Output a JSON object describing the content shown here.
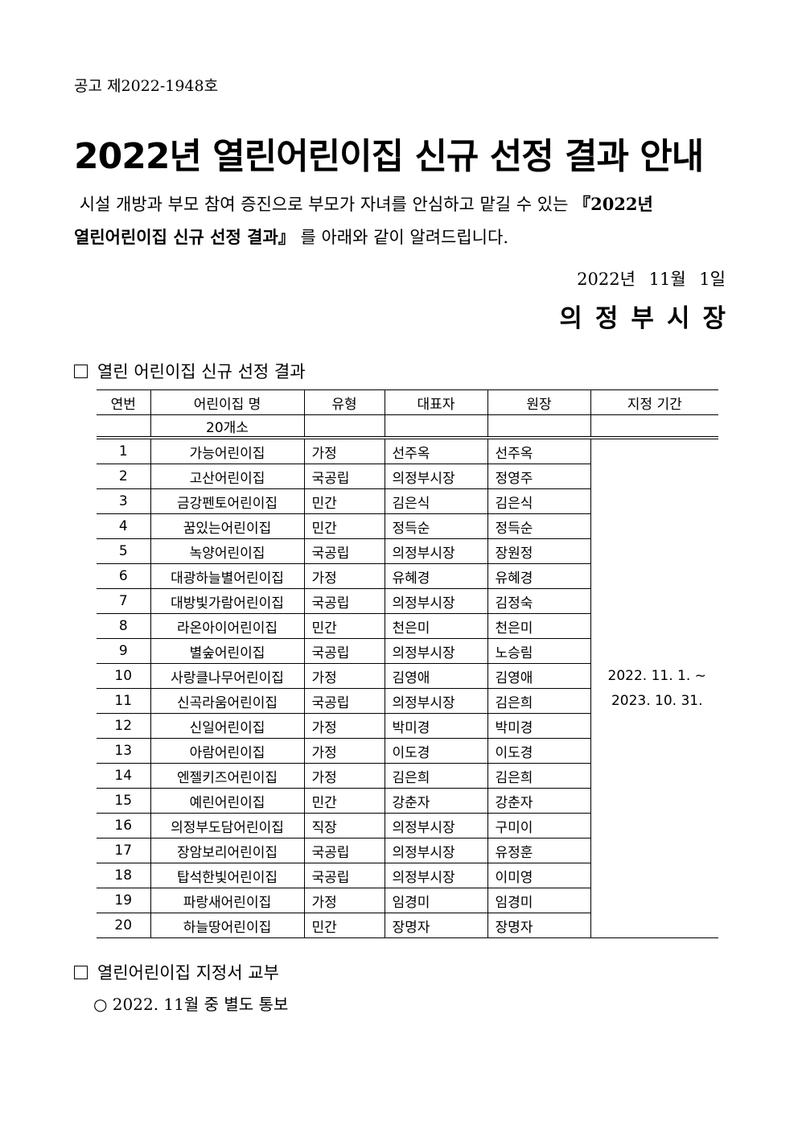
{
  "notice_number": "공고 제2022-1948호",
  "title": "2022년 열린어린이집 신규 선정 결과 안내",
  "intro": {
    "line1_plain": "시설 개방과 부모 참여 증진으로 부모가 자녀를 안심하고 맡길 수 있는 ",
    "line1_bold": "『2022년",
    "line2_bold": "열린어린이집 신규 선정 결과』",
    "line2_plain": " 를 아래와 같이 알려드립니다."
  },
  "date": "2022년 11월 1일",
  "signer": "의정부시장",
  "section1_title": "열린 어린이집 신규 선정 결과",
  "table": {
    "headers": [
      "연번",
      "어린이집 명",
      "유형",
      "대표자",
      "원장",
      "지정 기간"
    ],
    "subtotal": "20개소",
    "period_line1": "2022. 11. 1. ~",
    "period_line2": "2023. 10. 31.",
    "rows": [
      [
        "1",
        "가능어린이집",
        "가정",
        "선주옥",
        "선주옥"
      ],
      [
        "2",
        "고산어린이집",
        "국공립",
        "의정부시장",
        "정영주"
      ],
      [
        "3",
        "금강펜토어린이집",
        "민간",
        "김은식",
        "김은식"
      ],
      [
        "4",
        "꿈있는어린이집",
        "민간",
        "정득순",
        "정득순"
      ],
      [
        "5",
        "녹양어린이집",
        "국공립",
        "의정부시장",
        "장원정"
      ],
      [
        "6",
        "대광하늘별어린이집",
        "가정",
        "유혜경",
        "유혜경"
      ],
      [
        "7",
        "대방빛가람어린이집",
        "국공립",
        "의정부시장",
        "김정숙"
      ],
      [
        "8",
        "라온아이어린이집",
        "민간",
        "천은미",
        "천은미"
      ],
      [
        "9",
        "별숲어린이집",
        "국공립",
        "의정부시장",
        "노승림"
      ],
      [
        "10",
        "사랑클나무어린이집",
        "가정",
        "김영애",
        "김영애"
      ],
      [
        "11",
        "신곡라움어린이집",
        "국공립",
        "의정부시장",
        "김은희"
      ],
      [
        "12",
        "신일어린이집",
        "가정",
        "박미경",
        "박미경"
      ],
      [
        "13",
        "아람어린이집",
        "가정",
        "이도경",
        "이도경"
      ],
      [
        "14",
        "엔젤키즈어린이집",
        "가정",
        "김은희",
        "김은희"
      ],
      [
        "15",
        "예린어린이집",
        "민간",
        "강춘자",
        "강춘자"
      ],
      [
        "16",
        "의정부도담어린이집",
        "직장",
        "의정부시장",
        "구미이"
      ],
      [
        "17",
        "장암보리어린이집",
        "국공립",
        "의정부시장",
        "유정훈"
      ],
      [
        "18",
        "탑석한빛어린이집",
        "국공립",
        "의정부시장",
        "이미영"
      ],
      [
        "19",
        "파랑새어린이집",
        "가정",
        "임경미",
        "임경미"
      ],
      [
        "20",
        "하늘땅어린이집",
        "민간",
        "장명자",
        "장명자"
      ]
    ]
  },
  "section2_title": "열린어린이집 지정서 교부",
  "section2_bullet": "○ 2022. 11월 중 별도 통보"
}
